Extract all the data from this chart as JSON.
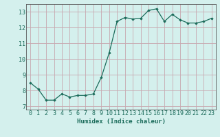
{
  "x": [
    0,
    1,
    2,
    3,
    4,
    5,
    6,
    7,
    8,
    9,
    10,
    11,
    12,
    13,
    14,
    15,
    16,
    17,
    18,
    19,
    20,
    21,
    22,
    23
  ],
  "y": [
    8.5,
    8.1,
    7.4,
    7.4,
    7.8,
    7.6,
    7.7,
    7.7,
    7.8,
    8.85,
    10.4,
    12.4,
    12.65,
    12.55,
    12.6,
    13.1,
    13.2,
    12.4,
    12.85,
    12.5,
    12.3,
    12.3,
    12.4,
    12.6
  ],
  "line_color": "#1a6b5a",
  "marker": "D",
  "marker_size": 1.8,
  "bg_color": "#d4f0ed",
  "grid_color": "#c8a8b0",
  "xlabel": "Humidex (Indice chaleur)",
  "xlabel_fontsize": 6.5,
  "yticks": [
    7,
    8,
    9,
    10,
    11,
    12,
    13
  ],
  "xticks": [
    0,
    1,
    2,
    3,
    4,
    5,
    6,
    7,
    8,
    9,
    10,
    11,
    12,
    13,
    14,
    15,
    16,
    17,
    18,
    19,
    20,
    21,
    22,
    23
  ],
  "xlim": [
    -0.5,
    23.5
  ],
  "ylim": [
    6.8,
    13.5
  ],
  "tick_fontsize": 6,
  "tick_color": "#1a6b5a",
  "label_color": "#1a6b5a",
  "spine_color": "#5a5a5a"
}
